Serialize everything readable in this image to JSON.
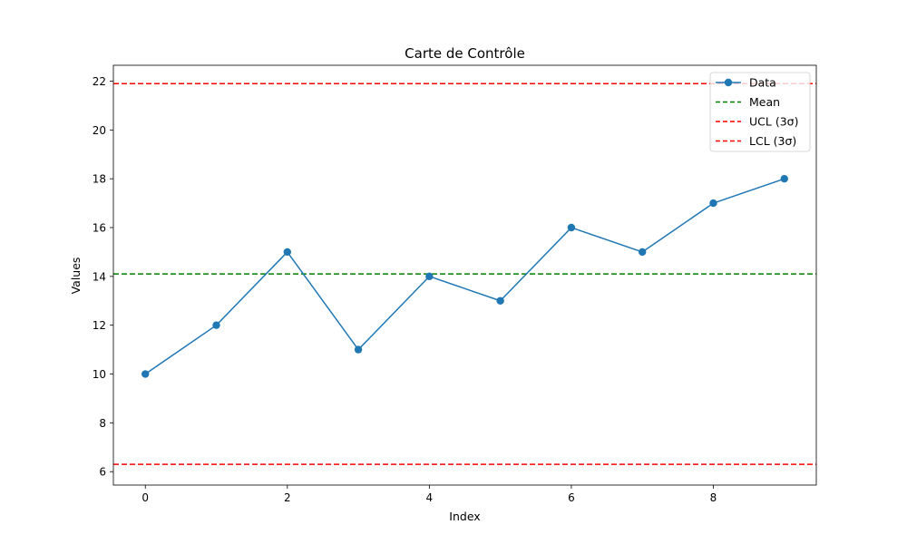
{
  "chart_data": {
    "type": "line",
    "title": "Carte de Contrôle",
    "xlabel": "Index",
    "ylabel": "Values",
    "xlim": [
      -0.45,
      9.45
    ],
    "ylim": [
      5.45,
      22.65
    ],
    "x_ticks": [
      0,
      2,
      4,
      6,
      8
    ],
    "y_ticks": [
      6,
      8,
      10,
      12,
      14,
      16,
      18,
      20,
      22
    ],
    "grid": false,
    "legend_position": "top-right",
    "series": [
      {
        "name": "Data",
        "kind": "line-marker",
        "color": "#1f77b4",
        "x": [
          0,
          1,
          2,
          3,
          4,
          5,
          6,
          7,
          8,
          9
        ],
        "values": [
          10,
          12,
          15,
          11,
          14,
          13,
          16,
          15,
          17,
          18
        ]
      }
    ],
    "reference_lines": [
      {
        "name": "Mean",
        "value": 14.1,
        "color": "#008000",
        "style": "dashed"
      },
      {
        "name": "UCL (3σ)",
        "value": 21.9,
        "color": "#ff0000",
        "style": "dashed"
      },
      {
        "name": "LCL (3σ)",
        "value": 6.3,
        "color": "#ff0000",
        "style": "dashed"
      }
    ]
  }
}
